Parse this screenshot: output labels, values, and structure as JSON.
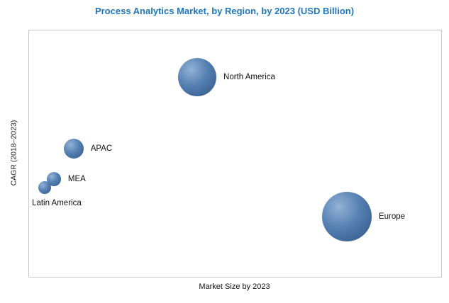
{
  "colors": {
    "title": "#2076bc",
    "bubble_highlight": "#93b2d6",
    "bubble_mid": "#5480b2",
    "bubble_dark": "#2f5484",
    "plot_border": "#c6c6c6"
  },
  "chart_data": {
    "type": "scatter",
    "title": "Process Analytics Market, by Region, by 2023 (USD Billion)",
    "xlabel": "Market Size by 2023",
    "ylabel": "CAGR (2018–2023)",
    "x_range": [
      0,
      100
    ],
    "y_range": [
      0,
      100
    ],
    "grid": false,
    "axis_ticks_shown": false,
    "points": [
      {
        "label": "North America",
        "x": 40.8,
        "y": 81.0,
        "r": 27,
        "label_pos": "right"
      },
      {
        "label": "APAC",
        "x": 10.8,
        "y": 52.0,
        "r": 14,
        "label_pos": "right"
      },
      {
        "label": "MEA",
        "x": 6.0,
        "y": 39.7,
        "r": 10,
        "label_pos": "right"
      },
      {
        "label": "Latin America",
        "x": 3.8,
        "y": 36.2,
        "r": 9,
        "label_pos": "below"
      },
      {
        "label": "Europe",
        "x": 77.1,
        "y": 24.4,
        "r": 35,
        "label_pos": "right"
      }
    ]
  }
}
